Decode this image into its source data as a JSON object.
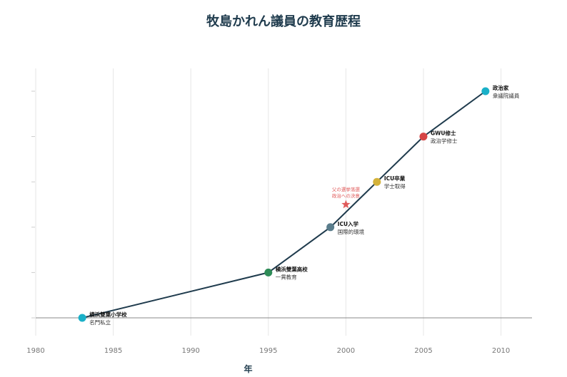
{
  "chart_data": {
    "type": "line",
    "title": "牧島かれん議員の教育歴程",
    "xlabel": "年",
    "ylabel": "",
    "xlim": [
      1980,
      2012
    ],
    "ylim": [
      0,
      5.3
    ],
    "xticks": [
      1980,
      1985,
      1990,
      1995,
      2000,
      2005,
      2010
    ],
    "grid": "vertical",
    "line_color": "#1f3b4d",
    "points": [
      {
        "x": 1983,
        "y": 0,
        "title": "横浜雙葉小学校",
        "sub": "名門私立",
        "color": "#1ab0c8"
      },
      {
        "x": 1995,
        "y": 1,
        "title": "横浜雙葉高校",
        "sub": "一貫教育",
        "color": "#2e8b57"
      },
      {
        "x": 1999,
        "y": 2,
        "title": "ICU入学",
        "sub": "国際的環境",
        "color": "#5a7d8c"
      },
      {
        "x": 2002,
        "y": 3,
        "title": "ICU卒業",
        "sub": "学士取得",
        "color": "#d4b23a"
      },
      {
        "x": 2005,
        "y": 4,
        "title": "GWU修士",
        "sub": "政治学修士",
        "color": "#d64545"
      },
      {
        "x": 2009,
        "y": 5,
        "title": "政治家",
        "sub": "衆議院議員",
        "color": "#1ab0c8"
      }
    ],
    "annotation": {
      "x": 2000,
      "y": 2.5,
      "lines": [
        "父の選挙落選",
        "政治への決意"
      ],
      "marker": "star",
      "color": "#e05a5a"
    }
  }
}
